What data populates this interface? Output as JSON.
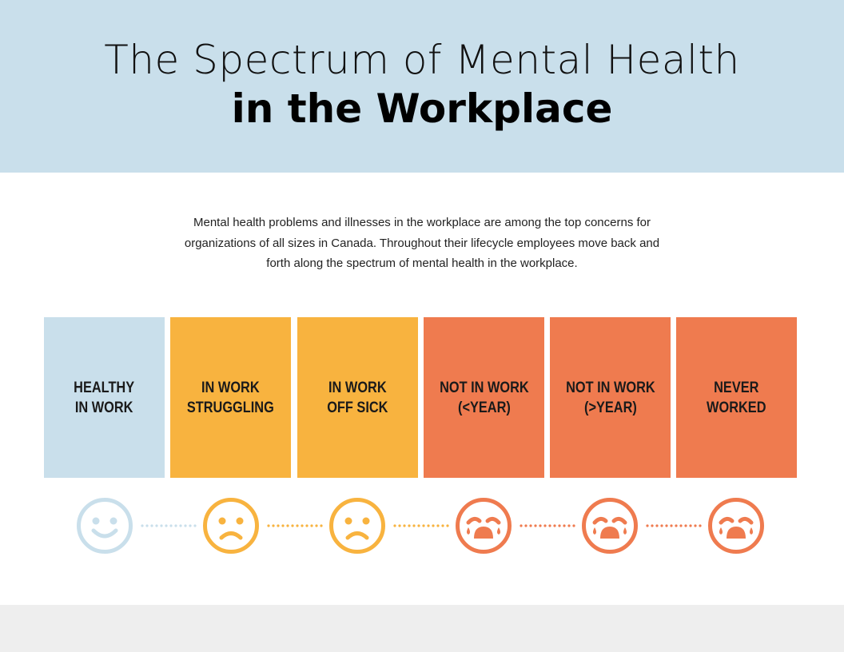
{
  "header": {
    "title_line1": "The Spectrum of Mental Health",
    "title_line2": "in the Workplace"
  },
  "intro": "Mental health problems and illnesses in the workplace are among the top concerns for organizations of all sizes in Canada. Throughout their lifecycle employees move back and forth along the spectrum of mental health in the workplace.",
  "colors": {
    "header_bg": "#c9dfeb",
    "light_blue": "#c9dfeb",
    "yellow": "#f8b33f",
    "orange": "#ef7b4f",
    "footer_bg": "#eeeeee"
  },
  "stages": [
    {
      "line1": "HEALTHY",
      "line2": "IN WORK",
      "color": "#c9dfeb",
      "face_icon": "smiley-face-icon"
    },
    {
      "line1": "IN WORK",
      "line2": "STRUGGLING",
      "color": "#f8b33f",
      "face_icon": "sad-face-icon"
    },
    {
      "line1": "IN WORK",
      "line2": "OFF SICK",
      "color": "#f8b33f",
      "face_icon": "sad-face-icon"
    },
    {
      "line1": "NOT IN WORK",
      "line2": "(<YEAR)",
      "color": "#ef7b4f",
      "face_icon": "crying-face-icon"
    },
    {
      "line1": "NOT IN WORK",
      "line2": "(>YEAR)",
      "color": "#ef7b4f",
      "face_icon": "crying-face-icon"
    },
    {
      "line1": "NEVER",
      "line2": "WORKED",
      "color": "#ef7b4f",
      "face_icon": "crying-face-icon"
    }
  ]
}
